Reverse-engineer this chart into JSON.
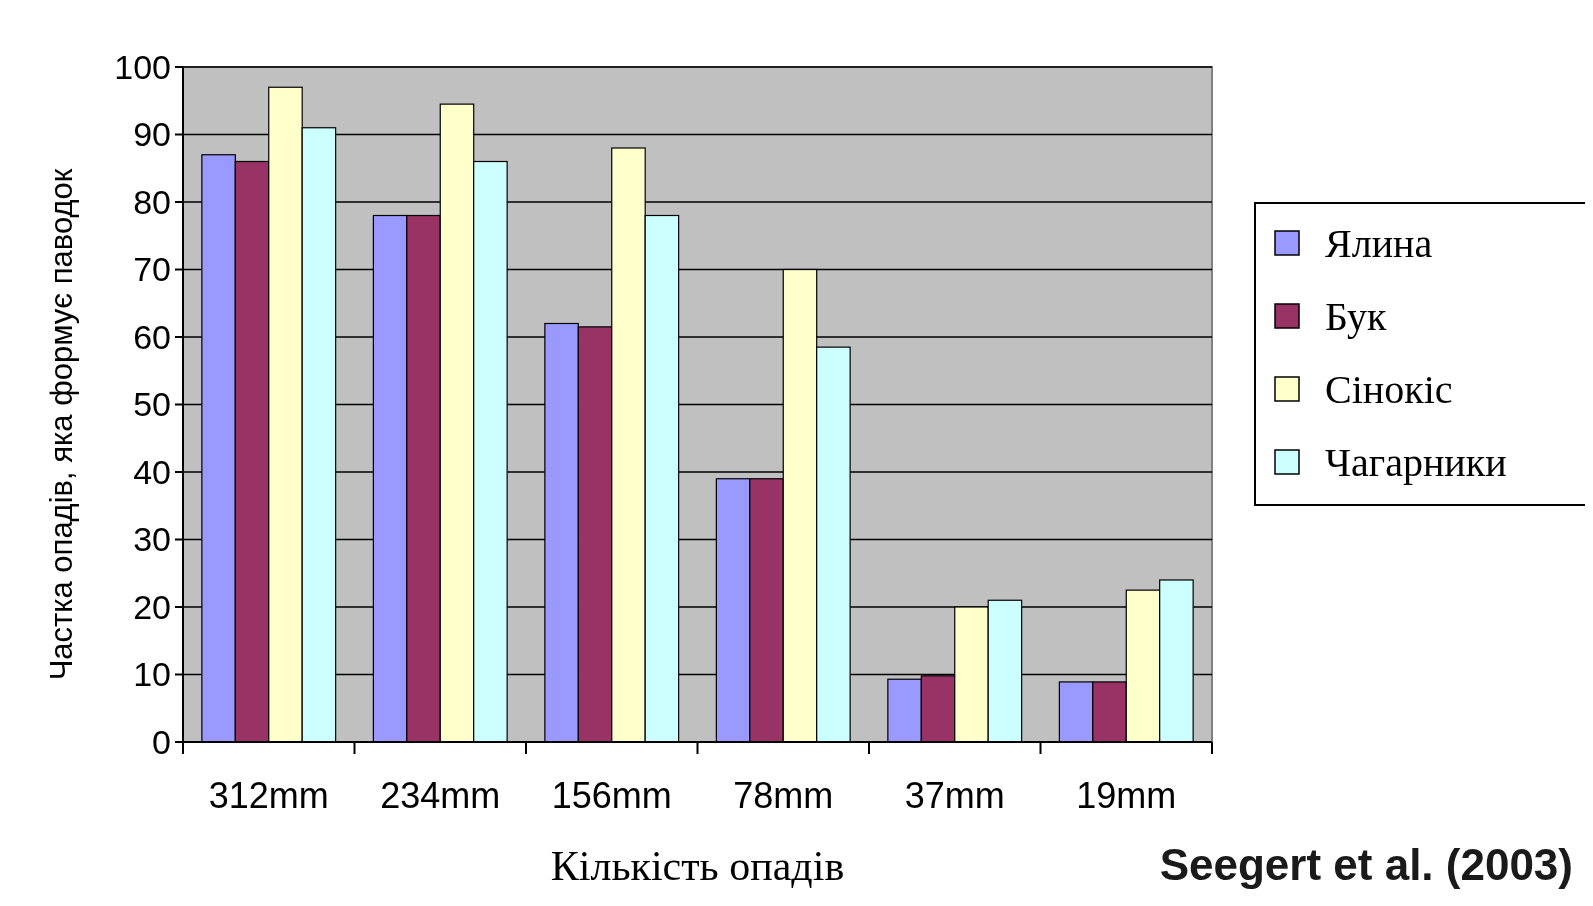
{
  "chart_data": {
    "type": "bar",
    "xlabel": "Кількість опадів",
    "ylabel": "Частка опадів, яка формує паводок",
    "categories": [
      "312mm",
      "234mm",
      "156mm",
      "78mm",
      "37mm",
      "19mm"
    ],
    "series": [
      {
        "name": "Ялина",
        "color": "#9999ff",
        "values": [
          87,
          78,
          62,
          39,
          9.3,
          8.9
        ]
      },
      {
        "name": "Бук",
        "color": "#993366",
        "values": [
          86,
          78,
          61.5,
          39,
          9.8,
          8.9
        ]
      },
      {
        "name": "Сінокіс",
        "color": "#ffffcc",
        "values": [
          97,
          94.5,
          88,
          70,
          20,
          22.5
        ]
      },
      {
        "name": "Чагарники",
        "color": "#ccffff",
        "values": [
          91,
          86,
          78,
          58.5,
          21,
          24
        ]
      }
    ],
    "ylim": [
      0,
      100
    ],
    "yticks": [
      0,
      10,
      20,
      30,
      40,
      50,
      60,
      70,
      80,
      90,
      100
    ],
    "grid": "y",
    "legend": "right",
    "annotations": [
      "Seegert et al. (2003)"
    ]
  }
}
